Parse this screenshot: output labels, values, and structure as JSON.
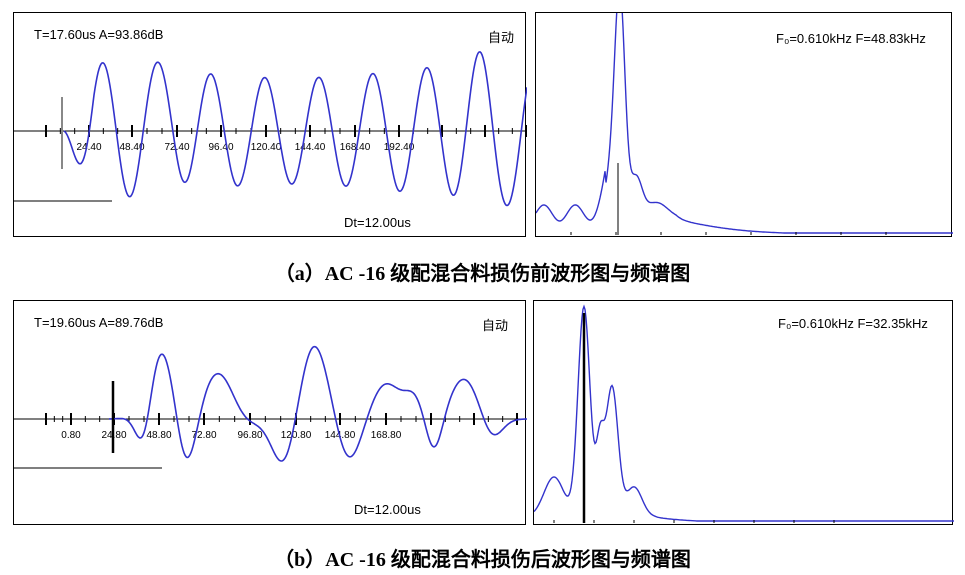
{
  "charts": [
    {
      "id": "a",
      "caption": "（a）AC -16 级配混合料损伤前波形图与频谱图",
      "waveform": {
        "header_left": "T=17.60us  A=93.86dB",
        "header_right": "自动",
        "footer": "Dt=12.00us",
        "x_ticks": [
          "24.40",
          "48.40",
          "72.40",
          "96.40",
          "120.40",
          "144.40",
          "168.40",
          "192.40"
        ]
      },
      "spectrum": {
        "header": "F₀=0.610kHz  F=48.83kHz"
      }
    },
    {
      "id": "b",
      "caption": "（b）AC -16 级配混合料损伤后波形图与频谱图",
      "waveform": {
        "header_left": "T=19.60us  A=89.76dB",
        "header_right": "自动",
        "footer": "Dt=12.00us",
        "x_ticks": [
          "0.80",
          "24.80",
          "48.80",
          "72.80",
          "96.80",
          "120.80",
          "144.80",
          "168.80"
        ]
      },
      "spectrum": {
        "header": "F₀=0.610kHz  F=32.35kHz"
      }
    }
  ],
  "chart_data": [
    {
      "type": "line",
      "title": "",
      "xlabel": "",
      "ylabel": "",
      "x": [
        "24.40",
        "48.40",
        "72.40",
        "96.40",
        "120.40",
        "144.40",
        "168.40",
        "192.40"
      ],
      "series": [
        {
          "values": [
            -0.35,
            0.8,
            0.55,
            0.45,
            0.42,
            0.5,
            0.8,
            0.45
          ]
        }
      ]
    },
    {
      "type": "line",
      "title": "",
      "xlabel": "",
      "ylabel": "",
      "series": [
        {
          "values": [
            0.05,
            0.15,
            0.2,
            1.0,
            0.2,
            0.05,
            0.03,
            0.02,
            0.02,
            0.02
          ]
        }
      ]
    },
    {
      "type": "line",
      "title": "",
      "xlabel": "",
      "ylabel": "",
      "x": [
        "0.80",
        "24.80",
        "48.80",
        "72.80",
        "96.80",
        "120.80",
        "144.80",
        "168.80"
      ],
      "series": [
        {
          "values": [
            0,
            -0.3,
            0.7,
            0.45,
            0.72,
            0.35,
            0.38,
            0.35
          ]
        }
      ]
    },
    {
      "type": "line",
      "title": "",
      "xlabel": "",
      "ylabel": "",
      "series": [
        {
          "values": [
            0.1,
            0.2,
            1.0,
            0.65,
            0.3,
            0.05,
            0.02,
            0.02,
            0.02,
            0.02
          ]
        }
      ]
    }
  ]
}
